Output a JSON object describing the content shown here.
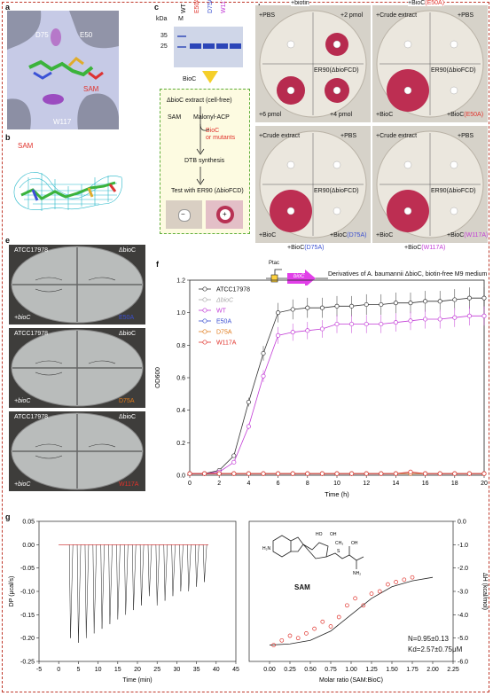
{
  "panels": {
    "a": {
      "letter": "a",
      "labels": {
        "d75": "D75",
        "e50": "E50",
        "sam": "SAM",
        "w117": "W117"
      }
    },
    "b": {
      "letter": "b",
      "sam": "SAM"
    },
    "c": {
      "letter": "c",
      "gel": {
        "kda": "kDa",
        "m": "M",
        "lanes": [
          "WT",
          "E50A",
          "D75A",
          "W117A"
        ],
        "lane_colors": [
          "#111111",
          "#e0322b",
          "#3a4fd1",
          "#c23bd6"
        ],
        "markers": [
          "35",
          "25"
        ]
      },
      "bioc": "BioC",
      "flow": {
        "extract": "ΔbioC extract (cell-free)",
        "sam": "SAM",
        "malonyl": "Malonyl-ACP",
        "bioc_mut": "BioC\nor mutants",
        "dtb": "DTB synthesis",
        "test": "Test with ER90 (ΔbioFCD)",
        "minus": "−",
        "plus": "+"
      }
    },
    "d": {
      "letter": "d",
      "plates": [
        {
          "top_center": "+biotin",
          "tl": "+PBS",
          "tr": "+2 pmol",
          "strain": "ER90(ΔbioFCD)",
          "bl": "+6 pmol",
          "br": "+4 pmol",
          "under": ""
        },
        {
          "top_center": "+BioC(E50A)",
          "tl": "+Crude extract",
          "tr": "+PBS",
          "strain": "ER90(ΔbioFCD)",
          "bl": "+BioC",
          "br": "+BioC(E50A)",
          "under": ""
        },
        {
          "top_center": "",
          "tl": "+Crude extract",
          "tr": "+PBS",
          "strain": "ER90(ΔbioFCD)",
          "bl": "+BioC",
          "br": "+BioC(D75A)",
          "under": "+BioC(D75A)"
        },
        {
          "top_center": "",
          "tl": "+Crude extract",
          "tr": "+PBS",
          "strain": "ER90(ΔbioFCD)",
          "bl": "+BioC",
          "br": "+BioC(W117A)",
          "under": "+BioC(W117A)"
        }
      ]
    },
    "e": {
      "letter": "e",
      "plates": [
        {
          "tl": "ATCC17978",
          "tr": "ΔbioC",
          "bl": "+bioC",
          "br": "E50A",
          "br_color": "#3a4fd1"
        },
        {
          "tl": "ATCC17978",
          "tr": "ΔbioC",
          "bl": "+bioC",
          "br": "D75A",
          "br_color": "#e07a1b"
        },
        {
          "tl": "ATCC17978",
          "tr": "ΔbioC",
          "bl": "+bioC",
          "br": "W117A",
          "br_color": "#e0322b"
        }
      ]
    },
    "f": {
      "letter": "f",
      "promoter": "Ptac",
      "gene": "bioC",
      "title": "Derivatives of A. baumannii ΔbioC, biotin-free M9 medium"
    },
    "g": {
      "letter": "g",
      "sam_label": "SAM",
      "n_text": "N=0.95±0.13",
      "kd_text": "Kd=2.57±0.75μM",
      "left": {
        "xlabel": "Time (min)",
        "ylabel": "DP (μcal/s)"
      },
      "right": {
        "xlabel": "Molar ratio (SAM:BioC)",
        "ylabel": "ΔH (kcal/mol)"
      }
    }
  },
  "chart_data": [
    {
      "type": "line",
      "xlabel": "Time (h)",
      "ylabel": "OD600",
      "xlim": [
        0,
        20
      ],
      "ylim": [
        0,
        1.2
      ],
      "xticks": [
        0,
        2,
        4,
        6,
        8,
        10,
        12,
        14,
        16,
        18,
        20
      ],
      "yticks": [
        0.0,
        0.2,
        0.4,
        0.6,
        0.8,
        1.0,
        1.2
      ],
      "legend": "top-left",
      "x": [
        0,
        1,
        2,
        3,
        4,
        5,
        6,
        7,
        8,
        9,
        10,
        11,
        12,
        13,
        14,
        15,
        16,
        17,
        18,
        19,
        20
      ],
      "series": [
        {
          "name": "ATCC17978",
          "color": "#333333",
          "marker": "circle",
          "values": [
            0.01,
            0.01,
            0.03,
            0.12,
            0.45,
            0.75,
            1.0,
            1.02,
            1.03,
            1.03,
            1.04,
            1.04,
            1.05,
            1.05,
            1.06,
            1.06,
            1.07,
            1.07,
            1.08,
            1.09,
            1.09
          ]
        },
        {
          "name": "ΔbioC",
          "color": "#a9a9a9",
          "marker": "circle",
          "values": [
            0.01,
            0.01,
            0.01,
            0.01,
            0.01,
            0.01,
            0.01,
            0.01,
            0.01,
            0.01,
            0.01,
            0.01,
            0.01,
            0.01,
            0.01,
            0.01,
            0.01,
            0.01,
            0.01,
            0.01,
            0.01
          ]
        },
        {
          "name": "WT",
          "color": "#c23bd6",
          "marker": "circle",
          "values": [
            0.01,
            0.01,
            0.02,
            0.08,
            0.3,
            0.61,
            0.86,
            0.88,
            0.89,
            0.9,
            0.93,
            0.93,
            0.93,
            0.93,
            0.94,
            0.95,
            0.96,
            0.96,
            0.97,
            0.98,
            0.98
          ]
        },
        {
          "name": "E50A",
          "color": "#3a4fd1",
          "marker": "circle",
          "values": [
            0.01,
            0.01,
            0.01,
            0.01,
            0.01,
            0.01,
            0.01,
            0.01,
            0.01,
            0.01,
            0.01,
            0.01,
            0.01,
            0.01,
            0.01,
            0.01,
            0.01,
            0.01,
            0.01,
            0.01,
            0.01
          ]
        },
        {
          "name": "D75A",
          "color": "#e07a1b",
          "marker": "circle",
          "values": [
            0.01,
            0.01,
            0.01,
            0.01,
            0.01,
            0.01,
            0.01,
            0.01,
            0.01,
            0.01,
            0.01,
            0.01,
            0.01,
            0.01,
            0.01,
            0.01,
            0.01,
            0.01,
            0.01,
            0.01,
            0.01
          ]
        },
        {
          "name": "W117A",
          "color": "#e0322b",
          "marker": "circle",
          "values": [
            0.01,
            0.01,
            0.01,
            0.01,
            0.01,
            0.01,
            0.01,
            0.01,
            0.01,
            0.01,
            0.01,
            0.01,
            0.01,
            0.01,
            0.01,
            0.02,
            0.01,
            0.01,
            0.01,
            0.01,
            0.01
          ]
        }
      ]
    },
    {
      "type": "line",
      "xlabel": "Time (min)",
      "ylabel": "DP (μcal/s)",
      "xlim": [
        -5,
        45
      ],
      "ylim": [
        -0.25,
        0.05
      ],
      "xticks": [
        -5,
        0,
        5,
        10,
        15,
        20,
        25,
        30,
        35,
        40,
        45
      ],
      "yticks": [
        0.05,
        0.0,
        -0.05,
        -0.1,
        -0.15,
        -0.2,
        -0.25
      ],
      "injection_times": [
        3,
        5,
        7,
        9,
        11,
        13,
        15,
        17,
        19,
        21,
        23,
        25,
        27,
        29,
        31,
        33,
        35,
        37
      ],
      "peak_values": [
        -0.2,
        -0.21,
        -0.2,
        -0.19,
        -0.18,
        -0.17,
        -0.16,
        -0.15,
        -0.14,
        -0.13,
        -0.11,
        -0.13,
        -0.12,
        -0.11,
        -0.1,
        -0.1,
        -0.09,
        -0.08
      ]
    },
    {
      "type": "scatter",
      "xlabel": "Molar ratio (SAM:BioC)",
      "ylabel": "ΔH (kcal/mol)",
      "xlim": [
        -0.25,
        2.25
      ],
      "ylim": [
        -6.0,
        0.0
      ],
      "xticks": [
        0.0,
        0.25,
        0.5,
        0.75,
        1.0,
        1.25,
        1.5,
        1.75,
        2.0,
        2.25
      ],
      "yticks": [
        0.0,
        -1.0,
        -2.0,
        -3.0,
        -4.0,
        -5.0,
        -6.0
      ],
      "points": {
        "x": [
          0.05,
          0.15,
          0.25,
          0.35,
          0.45,
          0.55,
          0.65,
          0.75,
          0.85,
          0.95,
          1.05,
          1.15,
          1.25,
          1.35,
          1.45,
          1.55,
          1.65,
          1.75
        ],
        "y": [
          -5.3,
          -5.1,
          -4.9,
          -5.0,
          -4.8,
          -4.6,
          -4.3,
          -4.5,
          -4.1,
          -3.6,
          -3.3,
          -3.6,
          -3.1,
          -3.0,
          -2.7,
          -2.6,
          -2.5,
          -2.4
        ]
      },
      "fit": {
        "x": [
          0.0,
          0.25,
          0.5,
          0.75,
          1.0,
          1.25,
          1.5,
          1.75,
          2.0
        ],
        "y": [
          -5.3,
          -5.25,
          -5.1,
          -4.7,
          -4.0,
          -3.3,
          -2.8,
          -2.55,
          -2.4
        ]
      }
    }
  ]
}
